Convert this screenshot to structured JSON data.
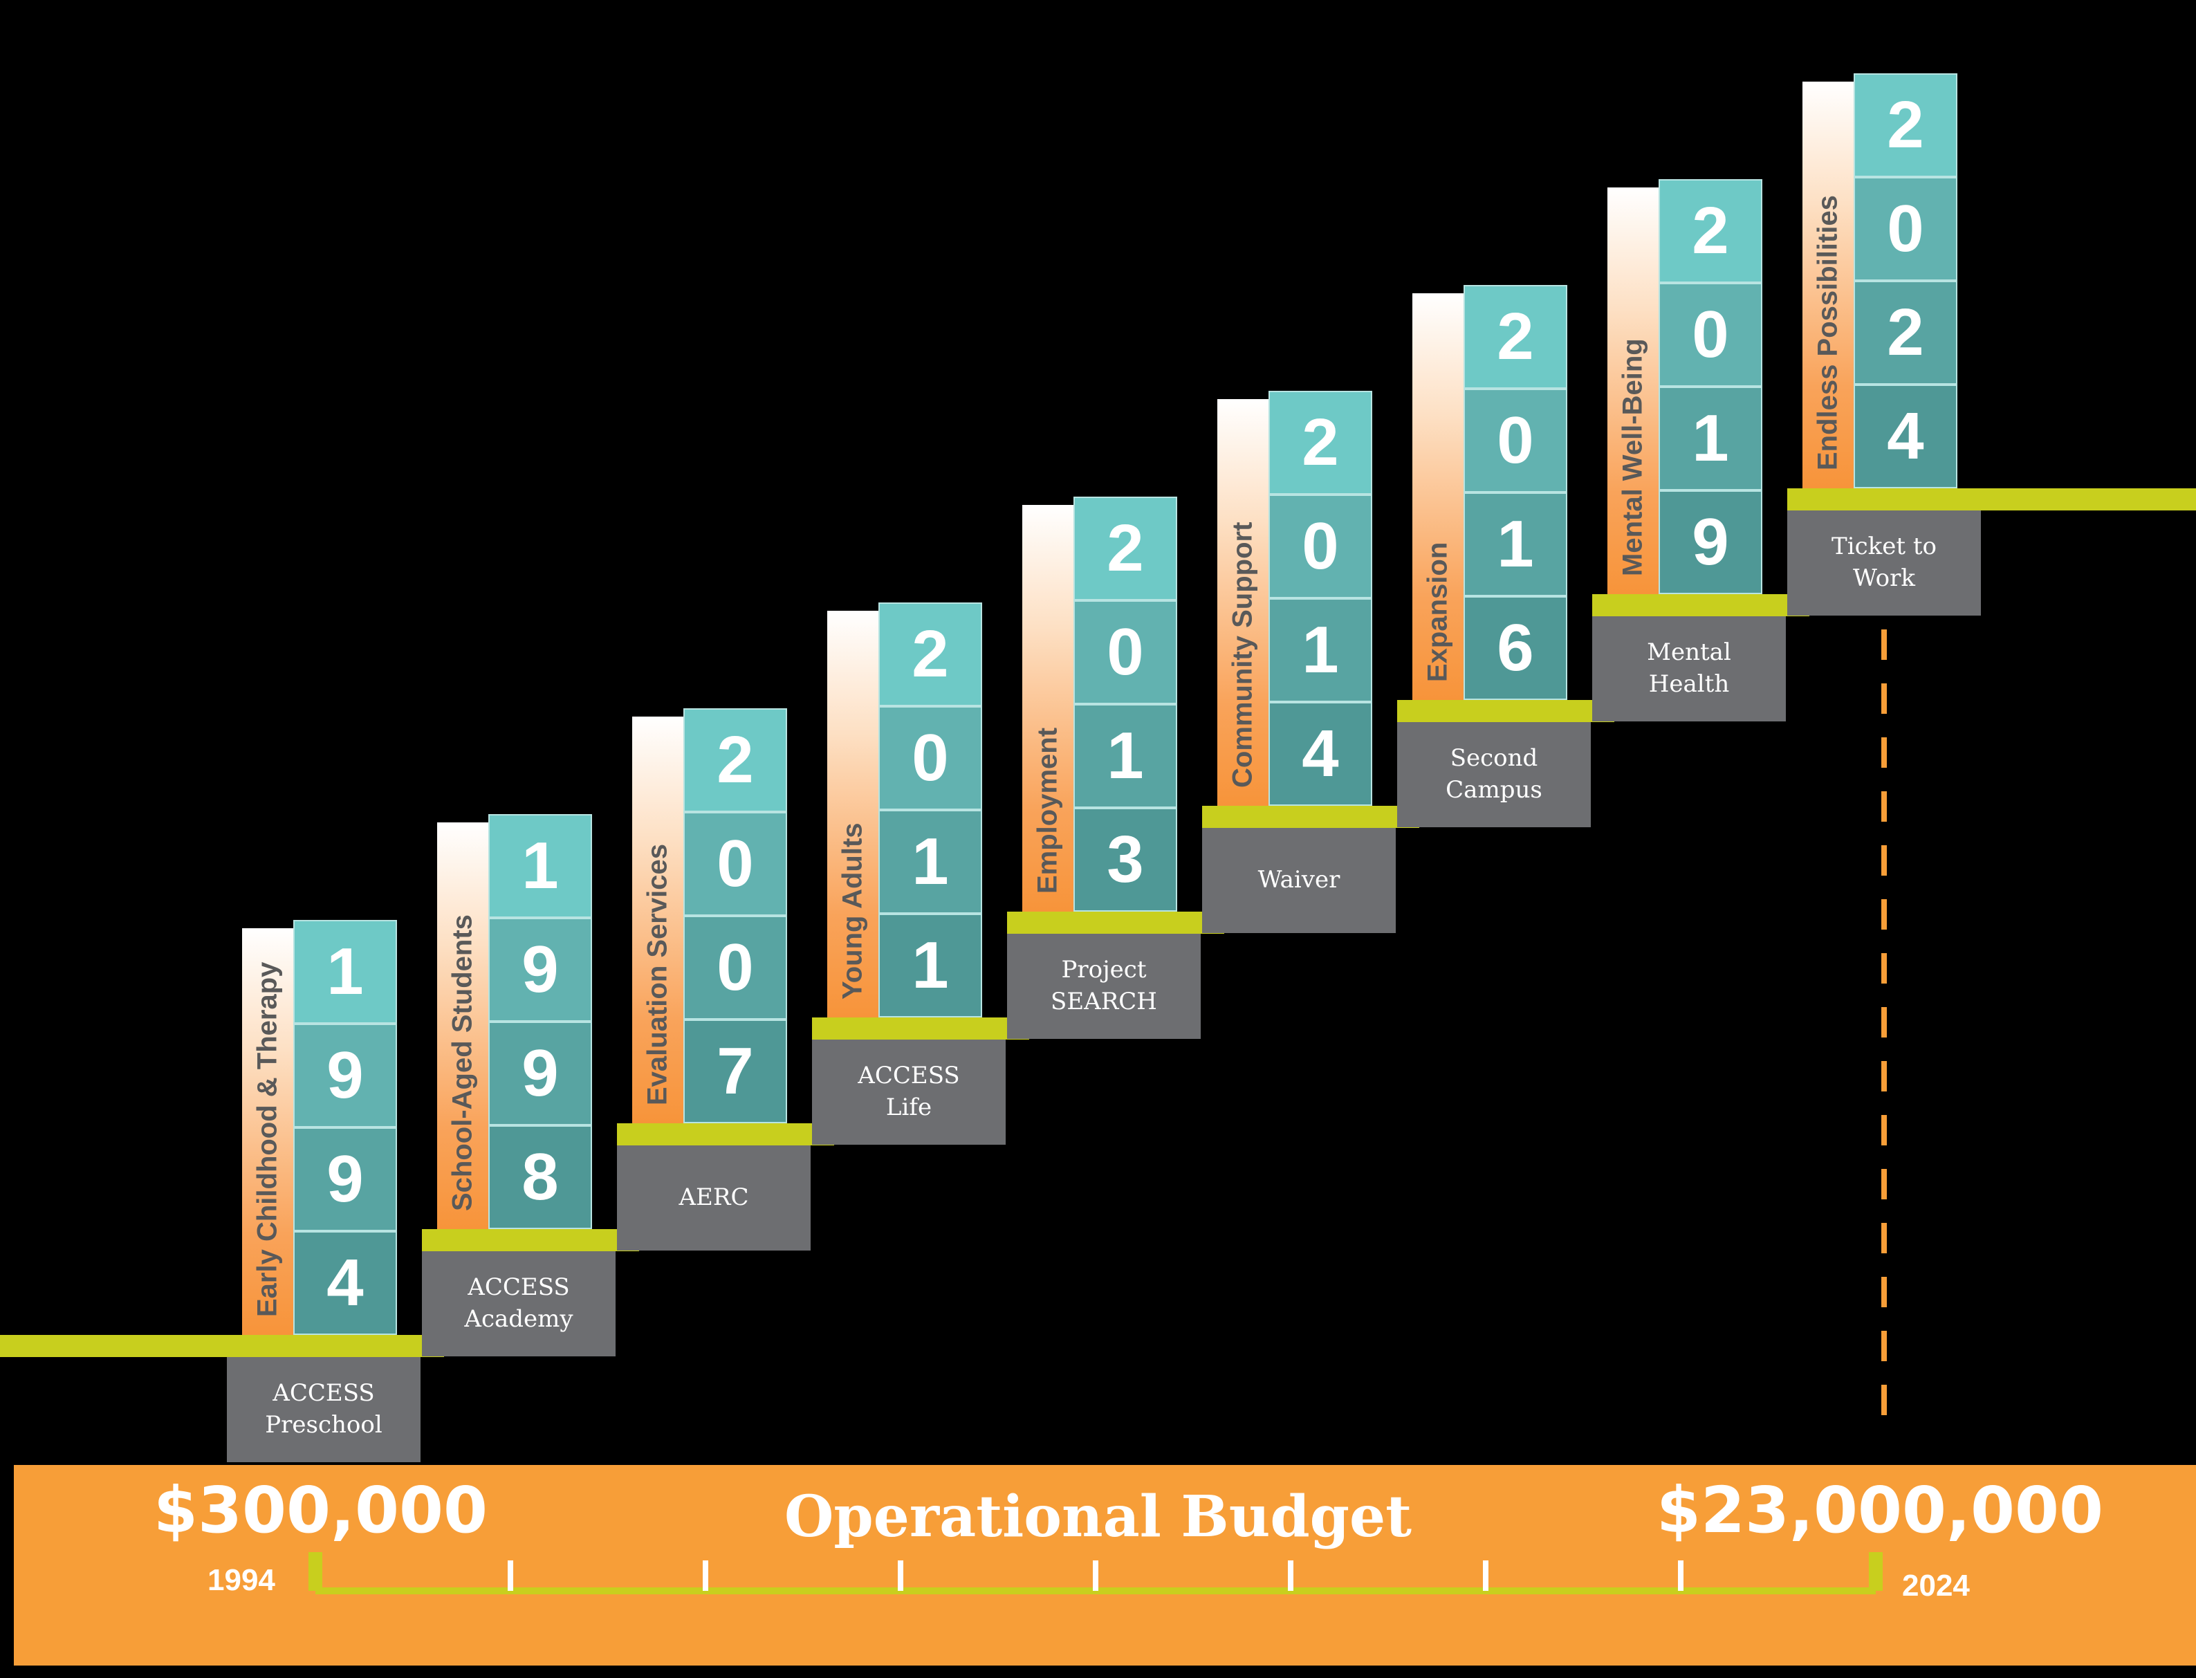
{
  "colors": {
    "background": "#000000",
    "staircase_line": "#c8cf1e",
    "label_strip_bottom": "#f7943a",
    "digit_teal_light": "#6ec9c6",
    "digit_teal_dark": "#4f9896",
    "name_box": "#6d6e71",
    "budget_band": "#f79e38",
    "dashed_marker": "#f79e38"
  },
  "milestones": [
    {
      "year_digits": [
        "1",
        "9",
        "9",
        "4"
      ],
      "category": "Early Childhood & Therapy",
      "program_lines": [
        "ACCESS",
        "Preschool"
      ]
    },
    {
      "year_digits": [
        "1",
        "9",
        "9",
        "8"
      ],
      "category": "School-Aged Students",
      "program_lines": [
        "ACCESS",
        "Academy"
      ]
    },
    {
      "year_digits": [
        "2",
        "0",
        "0",
        "7"
      ],
      "category": "Evaluation Services",
      "program_lines": [
        "AERC"
      ]
    },
    {
      "year_digits": [
        "2",
        "0",
        "1",
        "1"
      ],
      "category": "Young Adults",
      "program_lines": [
        "ACCESS",
        "Life"
      ]
    },
    {
      "year_digits": [
        "2",
        "0",
        "1",
        "3"
      ],
      "category": "Employment",
      "program_lines": [
        "Project",
        "SEARCH"
      ]
    },
    {
      "year_digits": [
        "2",
        "0",
        "1",
        "4"
      ],
      "category": "Community Support",
      "program_lines": [
        "Waiver"
      ]
    },
    {
      "year_digits": [
        "2",
        "0",
        "1",
        "6"
      ],
      "category": "Expansion",
      "program_lines": [
        "Second",
        "Campus"
      ]
    },
    {
      "year_digits": [
        "2",
        "0",
        "1",
        "9"
      ],
      "category": "Mental Well-Being",
      "program_lines": [
        "Mental",
        "Health"
      ]
    },
    {
      "year_digits": [
        "2",
        "0",
        "2",
        "4"
      ],
      "category": "Endless Possibilities",
      "program_lines": [
        "Ticket to",
        "Work"
      ]
    }
  ],
  "budget": {
    "title": "Operational Budget",
    "start_amount": "$300,000",
    "end_amount": "$23,000,000",
    "start_year": "1994",
    "end_year": "2024",
    "timeline_ticks": 9
  }
}
